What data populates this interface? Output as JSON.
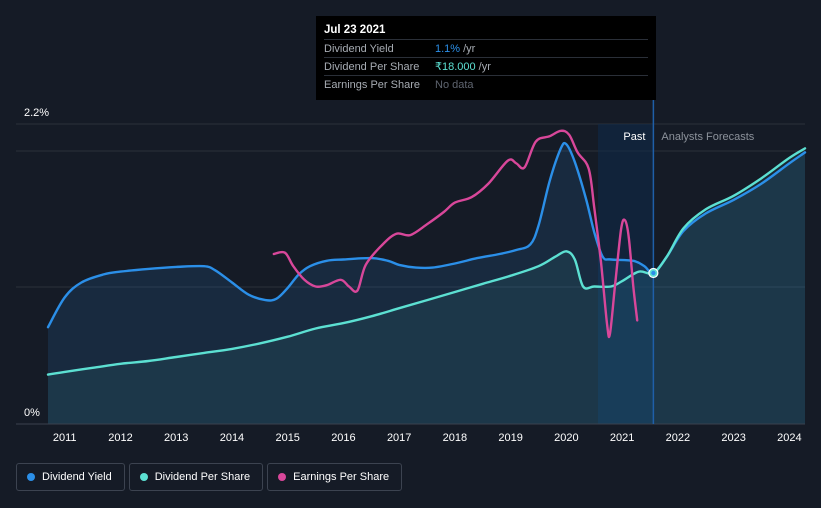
{
  "tooltip": {
    "date": "Jul 23 2021",
    "rows": [
      {
        "label": "Dividend Yield",
        "value": "1.1%",
        "unit": "/yr"
      },
      {
        "label": "Dividend Per Share",
        "value": "₹18.000",
        "unit": "/yr"
      },
      {
        "label": "Earnings Per Share",
        "value": "No data",
        "unit": ""
      }
    ]
  },
  "legend": [
    {
      "label": "Dividend Yield",
      "color": "#2b8fe8"
    },
    {
      "label": "Dividend Per Share",
      "color": "#5ce0d2"
    },
    {
      "label": "Earnings Per Share",
      "color": "#d8479a"
    }
  ],
  "regions": {
    "past": "Past",
    "forecast": "Analysts Forecasts"
  },
  "chart_data": {
    "type": "line",
    "y_tick_labels": [
      "2.2%",
      "0%"
    ],
    "ylim": [
      0,
      2.2
    ],
    "xlim": [
      2010.7,
      2024.28
    ],
    "x_ticks": [
      2011,
      2012,
      2013,
      2014,
      2015,
      2016,
      2017,
      2018,
      2019,
      2020,
      2021,
      2022,
      2023,
      2024
    ],
    "past_forecast_split": 2021.56,
    "series": [
      {
        "name": "Dividend Yield",
        "color": "#2b8fe8",
        "points": [
          [
            2010.7,
            0.7
          ],
          [
            2011.0,
            0.92
          ],
          [
            2011.3,
            1.03
          ],
          [
            2011.7,
            1.09
          ],
          [
            2012.0,
            1.11
          ],
          [
            2012.5,
            1.13
          ],
          [
            2013.0,
            1.145
          ],
          [
            2013.5,
            1.15
          ],
          [
            2013.7,
            1.12
          ],
          [
            2014.0,
            1.03
          ],
          [
            2014.3,
            0.94
          ],
          [
            2014.6,
            0.9
          ],
          [
            2014.8,
            0.91
          ],
          [
            2015.0,
            0.99
          ],
          [
            2015.2,
            1.09
          ],
          [
            2015.4,
            1.15
          ],
          [
            2015.7,
            1.19
          ],
          [
            2016.0,
            1.2
          ],
          [
            2016.5,
            1.21
          ],
          [
            2016.8,
            1.19
          ],
          [
            2017.0,
            1.16
          ],
          [
            2017.3,
            1.14
          ],
          [
            2017.6,
            1.14
          ],
          [
            2018.0,
            1.17
          ],
          [
            2018.4,
            1.21
          ],
          [
            2018.8,
            1.24
          ],
          [
            2019.1,
            1.27
          ],
          [
            2019.35,
            1.31
          ],
          [
            2019.5,
            1.45
          ],
          [
            2019.7,
            1.78
          ],
          [
            2019.9,
            2.02
          ],
          [
            2020.0,
            2.05
          ],
          [
            2020.15,
            1.92
          ],
          [
            2020.35,
            1.65
          ],
          [
            2020.5,
            1.4
          ],
          [
            2020.65,
            1.22
          ],
          [
            2020.8,
            1.2
          ],
          [
            2021.2,
            1.19
          ],
          [
            2021.4,
            1.15
          ],
          [
            2021.56,
            1.1
          ],
          [
            2021.8,
            1.22
          ],
          [
            2022.1,
            1.41
          ],
          [
            2022.5,
            1.54
          ],
          [
            2023.0,
            1.64
          ],
          [
            2023.5,
            1.76
          ],
          [
            2024.0,
            1.91
          ],
          [
            2024.28,
            1.99
          ]
        ]
      },
      {
        "name": "Dividend Per Share",
        "color": "#5ce0d2",
        "points": [
          [
            2010.7,
            0.35
          ],
          [
            2011.0,
            0.37
          ],
          [
            2011.5,
            0.4
          ],
          [
            2012.0,
            0.43
          ],
          [
            2012.5,
            0.45
          ],
          [
            2013.0,
            0.48
          ],
          [
            2013.5,
            0.51
          ],
          [
            2014.0,
            0.54
          ],
          [
            2014.5,
            0.58
          ],
          [
            2015.0,
            0.63
          ],
          [
            2015.5,
            0.69
          ],
          [
            2016.0,
            0.73
          ],
          [
            2016.5,
            0.78
          ],
          [
            2017.0,
            0.84
          ],
          [
            2017.5,
            0.9
          ],
          [
            2018.0,
            0.96
          ],
          [
            2018.5,
            1.02
          ],
          [
            2019.0,
            1.08
          ],
          [
            2019.5,
            1.15
          ],
          [
            2019.8,
            1.22
          ],
          [
            2020.0,
            1.26
          ],
          [
            2020.15,
            1.2
          ],
          [
            2020.3,
            1.0
          ],
          [
            2020.5,
            1.0
          ],
          [
            2020.8,
            1.0
          ],
          [
            2021.0,
            1.04
          ],
          [
            2021.3,
            1.11
          ],
          [
            2021.56,
            1.1
          ],
          [
            2021.8,
            1.22
          ],
          [
            2022.1,
            1.43
          ],
          [
            2022.5,
            1.57
          ],
          [
            2023.0,
            1.67
          ],
          [
            2023.5,
            1.8
          ],
          [
            2024.0,
            1.95
          ],
          [
            2024.28,
            2.02
          ]
        ]
      },
      {
        "name": "Earnings Per Share",
        "color": "#d8479a",
        "points": [
          [
            2014.75,
            1.24
          ],
          [
            2014.95,
            1.25
          ],
          [
            2015.1,
            1.15
          ],
          [
            2015.3,
            1.05
          ],
          [
            2015.5,
            1.0
          ],
          [
            2015.7,
            1.01
          ],
          [
            2015.95,
            1.05
          ],
          [
            2016.1,
            1.0
          ],
          [
            2016.25,
            0.97
          ],
          [
            2016.4,
            1.16
          ],
          [
            2016.7,
            1.31
          ],
          [
            2016.95,
            1.39
          ],
          [
            2017.2,
            1.38
          ],
          [
            2017.5,
            1.46
          ],
          [
            2017.8,
            1.55
          ],
          [
            2018.0,
            1.62
          ],
          [
            2018.3,
            1.66
          ],
          [
            2018.6,
            1.76
          ],
          [
            2018.95,
            1.93
          ],
          [
            2019.1,
            1.91
          ],
          [
            2019.25,
            1.88
          ],
          [
            2019.45,
            2.07
          ],
          [
            2019.7,
            2.11
          ],
          [
            2019.9,
            2.15
          ],
          [
            2020.05,
            2.12
          ],
          [
            2020.2,
            1.99
          ],
          [
            2020.4,
            1.87
          ],
          [
            2020.5,
            1.58
          ],
          [
            2020.62,
            1.18
          ],
          [
            2020.73,
            0.72
          ],
          [
            2020.78,
            0.65
          ],
          [
            2020.87,
            1.0
          ],
          [
            2020.98,
            1.42
          ],
          [
            2021.05,
            1.49
          ],
          [
            2021.12,
            1.36
          ],
          [
            2021.2,
            1.0
          ],
          [
            2021.27,
            0.75
          ]
        ]
      }
    ]
  }
}
